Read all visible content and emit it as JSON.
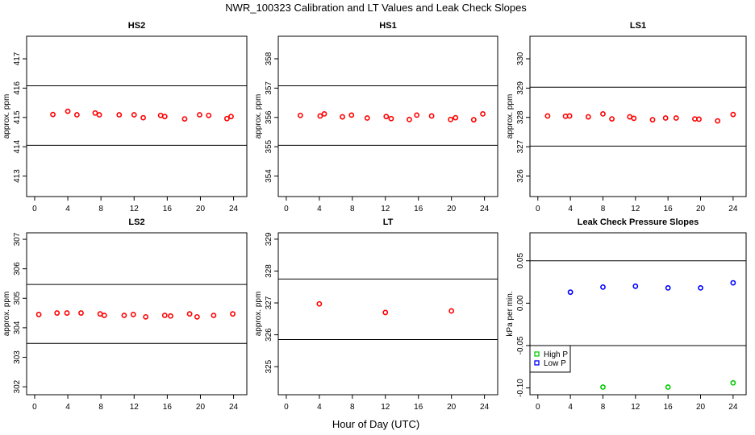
{
  "chart_data": [
    {
      "type": "scatter",
      "title": "HS2",
      "ylabel": "approx. ppm",
      "xlim": [
        -0.97,
        25.6
      ],
      "ylim": [
        412.3,
        417.77
      ],
      "xticks": [
        0,
        4,
        8,
        12,
        16,
        20,
        24
      ],
      "yticks": [
        413,
        414,
        415,
        416,
        417
      ],
      "hlines": [
        416.08,
        414.05
      ],
      "grid": false,
      "series": [
        {
          "color": "#ff0000",
          "x": [
            2.2,
            4,
            5.1,
            7.3,
            7.8,
            10.2,
            12,
            13.1,
            15.2,
            15.7,
            18.1,
            19.9,
            21,
            23.2,
            23.7
          ],
          "y": [
            415.1,
            415.21,
            415.09,
            415.15,
            415.09,
            415.09,
            415.09,
            414.99,
            415.07,
            415.03,
            414.95,
            415.09,
            415.07,
            414.96,
            415.03
          ]
        }
      ]
    },
    {
      "type": "scatter",
      "title": "HS1",
      "ylabel": "approx. ppm",
      "xlim": [
        -0.97,
        25.6
      ],
      "ylim": [
        353.3,
        358.77
      ],
      "xticks": [
        0,
        4,
        8,
        12,
        16,
        20,
        24
      ],
      "yticks": [
        354,
        355,
        356,
        357,
        358
      ],
      "hlines": [
        357.08,
        355.05
      ],
      "grid": false,
      "series": [
        {
          "color": "#ff0000",
          "x": [
            1.7,
            4.1,
            4.6,
            6.8,
            7.9,
            9.8,
            12.1,
            12.7,
            14.9,
            15.8,
            17.6,
            19.9,
            20.5,
            22.7,
            23.8
          ],
          "y": [
            356.07,
            356.05,
            356.12,
            356.02,
            356.08,
            355.98,
            356.03,
            355.96,
            355.93,
            356.08,
            356.05,
            355.93,
            355.99,
            355.92,
            356.12
          ]
        }
      ]
    },
    {
      "type": "scatter",
      "title": "LS1",
      "ylabel": "approx. ppm",
      "xlim": [
        -0.97,
        25.6
      ],
      "ylim": [
        325.3,
        330.77
      ],
      "xticks": [
        0,
        4,
        8,
        12,
        16,
        20,
        24
      ],
      "yticks": [
        326,
        327,
        328,
        329,
        330
      ],
      "hlines": [
        329.03,
        327.02
      ],
      "grid": false,
      "series": [
        {
          "color": "#ff0000",
          "x": [
            1.2,
            3.4,
            3.9,
            6.2,
            8,
            9.1,
            11.3,
            11.8,
            14.1,
            15.7,
            17,
            19.3,
            19.8,
            22.1,
            24
          ],
          "y": [
            328.05,
            328.04,
            328.05,
            328.02,
            328.12,
            327.95,
            328.02,
            327.97,
            327.92,
            327.98,
            327.98,
            327.95,
            327.94,
            327.88,
            328.1
          ]
        }
      ]
    },
    {
      "type": "scatter",
      "title": "LS2",
      "ylabel": "approx. ppm",
      "xlim": [
        -0.97,
        25.6
      ],
      "ylim": [
        301.73,
        307.22
      ],
      "xticks": [
        0,
        4,
        8,
        12,
        16,
        20,
        24
      ],
      "yticks": [
        302,
        303,
        304,
        305,
        306,
        307
      ],
      "hlines": [
        305.47,
        303.47
      ],
      "grid": false,
      "series": [
        {
          "color": "#ff0000",
          "x": [
            0.5,
            2.7,
            3.9,
            5.6,
            7.9,
            8.4,
            10.8,
            11.9,
            13.4,
            15.7,
            16.4,
            18.7,
            19.6,
            21.6,
            23.9
          ],
          "y": [
            304.45,
            304.5,
            304.5,
            304.5,
            304.47,
            304.42,
            304.42,
            304.45,
            304.37,
            304.42,
            304.4,
            304.47,
            304.37,
            304.42,
            304.47
          ]
        }
      ]
    },
    {
      "type": "scatter",
      "title": "LT",
      "ylabel": "approx. ppm",
      "xlim": [
        -0.97,
        25.6
      ],
      "ylim": [
        324.12,
        329.2
      ],
      "xticks": [
        0,
        4,
        8,
        12,
        16,
        20,
        24
      ],
      "yticks": [
        325,
        326,
        327,
        328,
        329
      ],
      "hlines": [
        327.75,
        325.85
      ],
      "grid": false,
      "series": [
        {
          "color": "#ff0000",
          "x": [
            4,
            12,
            20
          ],
          "y": [
            326.97,
            326.7,
            326.75
          ]
        }
      ]
    },
    {
      "type": "scatter",
      "title": "Leak Check Pressure Slopes",
      "ylabel": "kPa per min.",
      "xlim": [
        -0.97,
        25.6
      ],
      "ylim": [
        -0.108,
        0.083
      ],
      "xticks": [
        0,
        4,
        8,
        12,
        16,
        20,
        24
      ],
      "yticks": [
        -0.1,
        -0.05,
        0.0,
        0.05
      ],
      "ytick_labels": [
        "-0.10",
        "-0.05",
        "0.00",
        "0.05"
      ],
      "hlines": [
        0.05,
        -0.05
      ],
      "grid": false,
      "legend": "left",
      "series": [
        {
          "name": "High P",
          "color": "#00cc00",
          "x": [
            8,
            16,
            24
          ],
          "y": [
            -0.099,
            -0.099,
            -0.094
          ]
        },
        {
          "name": "Low P",
          "color": "#0000ff",
          "x": [
            4,
            8,
            12,
            16,
            20,
            24
          ],
          "y": [
            0.013,
            0.019,
            0.02,
            0.018,
            0.018,
            0.024
          ]
        }
      ]
    }
  ],
  "title": "NWR_100323  Calibration and LT Values and Leak Check Slopes",
  "xlabel": "Hour of Day (UTC)"
}
